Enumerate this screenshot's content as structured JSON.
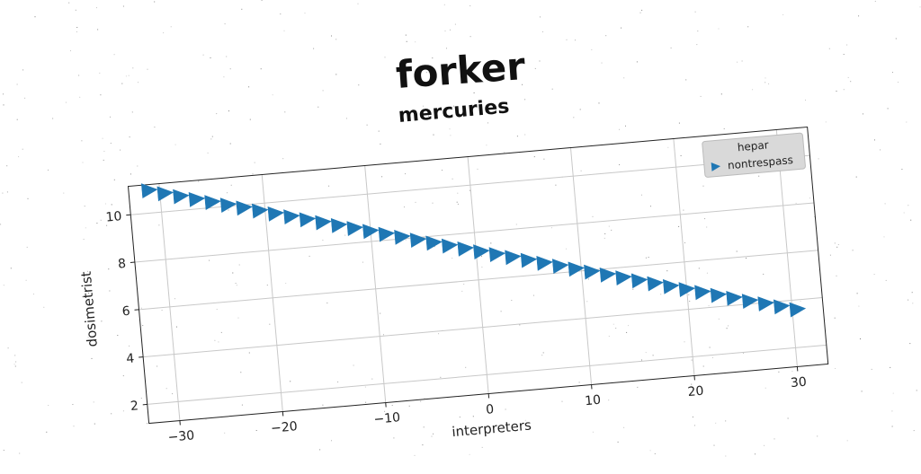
{
  "title": "forker",
  "chart_data": {
    "type": "scatter",
    "title": "mercuries",
    "xlabel": "interpreters",
    "ylabel": "dosimetrist",
    "xlim": [
      -33,
      33
    ],
    "ylim": [
      1.2,
      11.2
    ],
    "xticks": [
      -30,
      -20,
      -10,
      0,
      10,
      20,
      30
    ],
    "yticks": [
      2,
      4,
      6,
      8,
      10
    ],
    "grid": true,
    "legend": {
      "title": "hepar",
      "position": "top-right"
    },
    "series": [
      {
        "name": "nontrespass",
        "marker": "triangle-right",
        "color": "#1f77b4",
        "x": [
          -31,
          -29.5,
          -28,
          -26.5,
          -25,
          -23.5,
          -22,
          -20.5,
          -19,
          -17.5,
          -16,
          -14.5,
          -13,
          -11.5,
          -10,
          -8.5,
          -7,
          -5.5,
          -4,
          -2.5,
          -1,
          0.5,
          2,
          3.5,
          5,
          6.5,
          8,
          9.5,
          11,
          12.5,
          14,
          15.5,
          17,
          18.5,
          20,
          21.5,
          23,
          24.5,
          26,
          27.5,
          29,
          30.5
        ],
        "y": [
          10.96,
          10.78,
          10.6,
          10.42,
          10.24,
          10.07,
          9.89,
          9.71,
          9.53,
          9.35,
          9.17,
          8.99,
          8.81,
          8.63,
          8.45,
          8.27,
          8.09,
          7.91,
          7.73,
          7.55,
          7.37,
          7.19,
          7.02,
          6.84,
          6.66,
          6.48,
          6.3,
          6.12,
          5.94,
          5.76,
          5.58,
          5.4,
          5.22,
          5.04,
          4.86,
          4.68,
          4.5,
          4.32,
          4.14,
          3.97,
          3.79,
          3.61
        ]
      }
    ]
  }
}
